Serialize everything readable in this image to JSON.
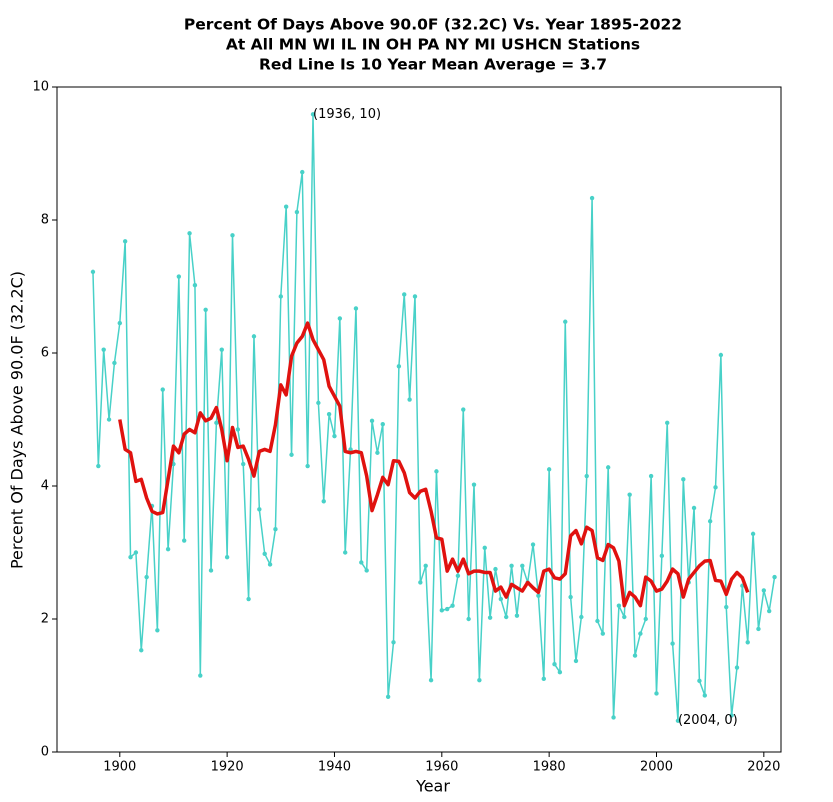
{
  "chart_data": {
    "type": "line",
    "title": [
      "Percent Of Days Above 90.0F (32.2C) Vs. Year 1895-2022",
      "At All MN WI IL IN OH PA NY MI USHCN Stations",
      "Red Line Is 10 Year Mean  Average = 3.7"
    ],
    "xlabel": "Year",
    "ylabel": "Percent Of Days Above 90.0F (32.2C)",
    "xlim": [
      1888.3,
      2023.2
    ],
    "ylim": [
      0,
      10
    ],
    "xticks": [
      1900,
      1920,
      1940,
      1960,
      1980,
      2000,
      2020
    ],
    "yticks": [
      0,
      2,
      4,
      6,
      8,
      10
    ],
    "series": [
      {
        "color": "#48d1c8",
        "markers": true,
        "x": [
          1895,
          1896,
          1897,
          1898,
          1899,
          1900,
          1901,
          1902,
          1903,
          1904,
          1905,
          1906,
          1907,
          1908,
          1909,
          1910,
          1911,
          1912,
          1913,
          1914,
          1915,
          1916,
          1917,
          1918,
          1919,
          1920,
          1921,
          1922,
          1923,
          1924,
          1925,
          1926,
          1927,
          1928,
          1929,
          1930,
          1931,
          1932,
          1933,
          1934,
          1935,
          1936,
          1937,
          1938,
          1939,
          1940,
          1941,
          1942,
          1943,
          1944,
          1945,
          1946,
          1947,
          1948,
          1949,
          1950,
          1951,
          1952,
          1953,
          1954,
          1955,
          1956,
          1957,
          1958,
          1959,
          1960,
          1961,
          1962,
          1963,
          1964,
          1965,
          1966,
          1967,
          1968,
          1969,
          1970,
          1971,
          1972,
          1973,
          1974,
          1975,
          1976,
          1977,
          1978,
          1979,
          1980,
          1981,
          1982,
          1983,
          1984,
          1985,
          1986,
          1987,
          1988,
          1989,
          1990,
          1991,
          1992,
          1993,
          1994,
          1995,
          1996,
          1997,
          1998,
          1999,
          2000,
          2001,
          2002,
          2003,
          2004,
          2005,
          2006,
          2007,
          2008,
          2009,
          2010,
          2011,
          2012,
          2013,
          2014,
          2015,
          2016,
          2017,
          2018,
          2019,
          2020,
          2021,
          2022
        ],
        "values": [
          7.22,
          4.3,
          6.05,
          5.0,
          5.85,
          6.45,
          7.68,
          2.93,
          3.0,
          1.53,
          2.63,
          3.7,
          1.83,
          5.45,
          3.05,
          4.33,
          7.15,
          3.18,
          7.8,
          7.02,
          1.15,
          6.65,
          2.73,
          4.95,
          6.05,
          2.93,
          7.77,
          4.85,
          4.33,
          2.3,
          6.25,
          3.65,
          2.98,
          2.82,
          3.35,
          6.85,
          8.2,
          4.47,
          8.12,
          8.72,
          4.3,
          9.59,
          5.25,
          3.77,
          5.08,
          4.75,
          6.52,
          3.0,
          4.55,
          6.67,
          2.85,
          2.73,
          4.98,
          4.5,
          4.93,
          0.83,
          1.65,
          5.8,
          6.88,
          5.3,
          6.85,
          2.55,
          2.8,
          1.08,
          4.22,
          2.13,
          2.15,
          2.2,
          2.65,
          5.15,
          2.0,
          4.02,
          1.08,
          3.07,
          2.02,
          2.75,
          2.3,
          2.03,
          2.8,
          2.05,
          2.8,
          2.55,
          3.12,
          2.35,
          1.1,
          4.25,
          1.32,
          1.2,
          6.47,
          2.33,
          1.37,
          2.03,
          4.15,
          8.33,
          1.97,
          1.78,
          4.28,
          0.52,
          2.2,
          2.03,
          3.87,
          1.45,
          1.78,
          2.0,
          4.15,
          0.88,
          2.95,
          4.95,
          1.63,
          0.47,
          4.1,
          2.55,
          3.67,
          1.07,
          0.85,
          3.47,
          3.98,
          5.97,
          2.18,
          0.55,
          1.27,
          2.5,
          1.65,
          3.28,
          1.85,
          2.43,
          2.12,
          2.63
        ]
      },
      {
        "color": "#e0120f",
        "markers": false,
        "x": [
          1900,
          1901,
          1902,
          1903,
          1904,
          1905,
          1906,
          1907,
          1908,
          1909,
          1910,
          1911,
          1912,
          1913,
          1914,
          1915,
          1916,
          1917,
          1918,
          1919,
          1920,
          1921,
          1922,
          1923,
          1924,
          1925,
          1926,
          1927,
          1928,
          1929,
          1930,
          1931,
          1932,
          1933,
          1934,
          1935,
          1936,
          1937,
          1938,
          1939,
          1940,
          1941,
          1942,
          1943,
          1944,
          1945,
          1946,
          1947,
          1948,
          1949,
          1950,
          1951,
          1952,
          1953,
          1954,
          1955,
          1956,
          1957,
          1958,
          1959,
          1960,
          1961,
          1962,
          1963,
          1964,
          1965,
          1966,
          1967,
          1968,
          1969,
          1970,
          1971,
          1972,
          1973,
          1974,
          1975,
          1976,
          1977,
          1978,
          1979,
          1980,
          1981,
          1982,
          1983,
          1984,
          1985,
          1986,
          1987,
          1988,
          1989,
          1990,
          1991,
          1992,
          1993,
          1994,
          1995,
          1996,
          1997,
          1998,
          1999,
          2000,
          2001,
          2002,
          2003,
          2004,
          2005,
          2006,
          2007,
          2008,
          2009,
          2010,
          2011,
          2012,
          2013,
          2014,
          2015,
          2016,
          2017
        ],
        "values": [
          5.0,
          4.55,
          4.5,
          4.07,
          4.1,
          3.82,
          3.62,
          3.58,
          3.6,
          4.1,
          4.6,
          4.5,
          4.78,
          4.85,
          4.8,
          5.1,
          4.98,
          5.02,
          5.18,
          4.85,
          4.38,
          4.88,
          4.58,
          4.6,
          4.4,
          4.15,
          4.52,
          4.55,
          4.52,
          4.92,
          5.52,
          5.37,
          5.95,
          6.15,
          6.25,
          6.45,
          6.2,
          6.05,
          5.9,
          5.5,
          5.35,
          5.2,
          4.52,
          4.5,
          4.52,
          4.5,
          4.15,
          3.63,
          3.87,
          4.13,
          4.02,
          4.38,
          4.37,
          4.2,
          3.9,
          3.82,
          3.92,
          3.95,
          3.62,
          3.22,
          3.2,
          2.72,
          2.9,
          2.72,
          2.9,
          2.68,
          2.72,
          2.72,
          2.7,
          2.7,
          2.42,
          2.48,
          2.33,
          2.52,
          2.47,
          2.42,
          2.55,
          2.47,
          2.4,
          2.72,
          2.75,
          2.62,
          2.6,
          2.68,
          3.25,
          3.33,
          3.13,
          3.38,
          3.33,
          2.92,
          2.88,
          3.12,
          3.07,
          2.87,
          2.2,
          2.4,
          2.33,
          2.2,
          2.63,
          2.57,
          2.42,
          2.45,
          2.57,
          2.75,
          2.68,
          2.33,
          2.6,
          2.7,
          2.8,
          2.87,
          2.88,
          2.58,
          2.57,
          2.37,
          2.6,
          2.7,
          2.62,
          2.4
        ]
      }
    ],
    "annotations": [
      {
        "text": "(1936, 10)",
        "x": 1936,
        "y": 9.59
      },
      {
        "text": "(2004, 0)",
        "x": 2004,
        "y": 0.47
      }
    ]
  }
}
